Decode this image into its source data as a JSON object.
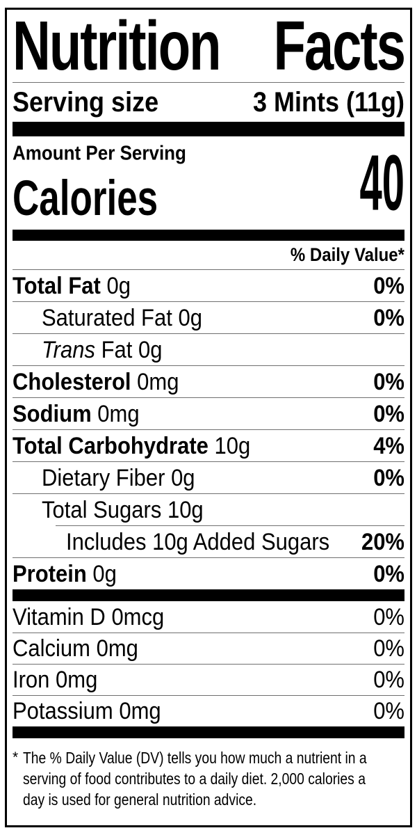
{
  "colors": {
    "text": "#000000",
    "bars": "#000000",
    "hairline": "#6f6f6f",
    "background": "#ffffff",
    "border": "#000000"
  },
  "label": {
    "title": {
      "word1": "Nutrition",
      "word2": "Facts"
    },
    "serving": {
      "label": "Serving size",
      "value": "3 Mints (11g)"
    },
    "calories": {
      "amount_per_serving": "Amount Per Serving",
      "label": "Calories",
      "value": "40"
    },
    "dv_header": "% Daily Value*",
    "nutrients": [
      {
        "name": "Total Fat",
        "amount": "0g",
        "dv": "0%"
      },
      {
        "name": "Saturated Fat",
        "amount": "0g",
        "dv": "0%"
      },
      {
        "name_italic": "Trans",
        "name": "Fat",
        "amount": "0g",
        "dv": ""
      },
      {
        "name": "Cholesterol",
        "amount": "0mg",
        "dv": "0%"
      },
      {
        "name": "Sodium",
        "amount": "0mg",
        "dv": "0%"
      },
      {
        "name": "Total Carbohydrate",
        "amount": "10g",
        "dv": "4%"
      },
      {
        "name": "Dietary Fiber",
        "amount": "0g",
        "dv": "0%"
      },
      {
        "name": "Total Sugars",
        "amount": "10g",
        "dv": ""
      },
      {
        "name": "Includes 10g Added Sugars",
        "dv": "20%"
      },
      {
        "name": "Protein",
        "amount": "0g",
        "dv": "0%"
      }
    ],
    "vitamins": [
      {
        "name": "Vitamin D",
        "amount": "0mcg",
        "dv": "0%"
      },
      {
        "name": "Calcium",
        "amount": "0mg",
        "dv": "0%"
      },
      {
        "name": "Iron",
        "amount": "0mg",
        "dv": "0%"
      },
      {
        "name": "Potassium",
        "amount": "0mg",
        "dv": "0%"
      }
    ],
    "footnote": {
      "asterisk": "*",
      "line1": "The % Daily Value (DV) tells you how much a nutrient in a",
      "line2": "serving of food contributes to a daily diet. 2,000 calories a",
      "line3": "day is used for general nutrition advice."
    }
  }
}
